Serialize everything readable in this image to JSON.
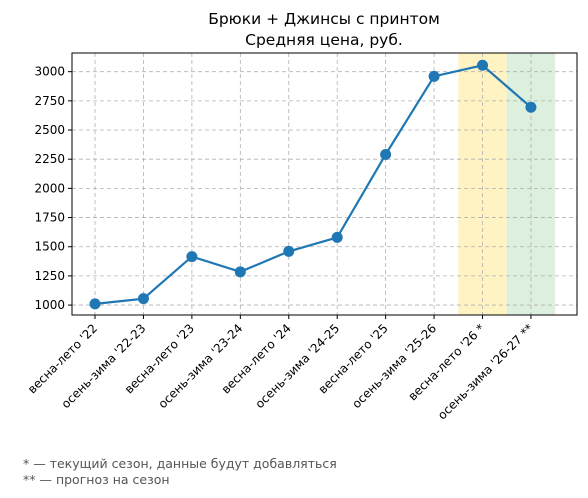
{
  "chart_data": {
    "type": "line",
    "title": "Брюки + Джинсы с принтом",
    "subtitle": "Средняя цена, руб.",
    "categories": [
      "весна-лето '22",
      "осень-зима '22-23",
      "весна-лето '23",
      "осень-зима '23-24",
      "весна-лето '24",
      "осень-зима '24-25",
      "весна-лето '25",
      "осень-зима '25-26",
      "весна-лето '26 *",
      "осень-зима '26-27 **"
    ],
    "values": [
      1010,
      1055,
      1415,
      1285,
      1460,
      1580,
      2290,
      2960,
      3055,
      2695
    ],
    "ylim": [
      915,
      3160
    ],
    "yticks": [
      1000,
      1250,
      1500,
      1750,
      2000,
      2250,
      2500,
      2750,
      3000
    ],
    "grid": true,
    "color": "#1f77b4",
    "highlights": [
      {
        "category": "весна-лето '26 *",
        "color": "#fff3c4"
      },
      {
        "category": "осень-зима '26-27 **",
        "color": "#ddefdd"
      }
    ]
  },
  "footnotes": [
    "* — текущий сезон, данные будут добавляться",
    "** — прогноз на сезон"
  ]
}
